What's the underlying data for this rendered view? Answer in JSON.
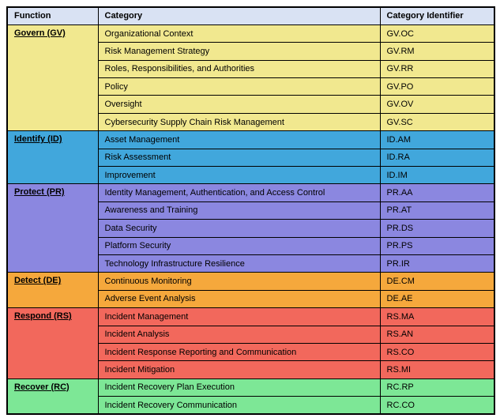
{
  "table": {
    "title_semantic": "NIST CSF 2.0 Functions and Categories",
    "columns": [
      "Function",
      "Category",
      "Category Identifier"
    ],
    "header_bg": "#D9E2F3",
    "border_color": "#000000",
    "text_color": "#000000",
    "sections": [
      {
        "function": "Govern (GV)",
        "color": "#F1E88F",
        "rows": [
          {
            "category": "Organizational Context",
            "id": "GV.OC"
          },
          {
            "category": "Risk Management Strategy",
            "id": "GV.RM"
          },
          {
            "category": "Roles, Responsibilities, and Authorities",
            "id": "GV.RR"
          },
          {
            "category": "Policy",
            "id": "GV.PO"
          },
          {
            "category": "Oversight",
            "id": "GV.OV"
          },
          {
            "category": "Cybersecurity Supply Chain Risk Management",
            "id": "GV.SC"
          }
        ]
      },
      {
        "function": "Identify (ID)",
        "color": "#41A7DC",
        "rows": [
          {
            "category": "Asset Management",
            "id": "ID.AM"
          },
          {
            "category": "Risk Assessment",
            "id": "ID.RA"
          },
          {
            "category": "Improvement",
            "id": "ID.IM"
          }
        ]
      },
      {
        "function": "Protect (PR)",
        "color": "#8B87E0",
        "rows": [
          {
            "category": "Identity Management, Authentication, and Access Control",
            "id": "PR.AA"
          },
          {
            "category": "Awareness and Training",
            "id": "PR.AT"
          },
          {
            "category": "Data Security",
            "id": "PR.DS"
          },
          {
            "category": "Platform Security",
            "id": "PR.PS"
          },
          {
            "category": "Technology Infrastructure Resilience",
            "id": "PR.IR"
          }
        ]
      },
      {
        "function": "Detect (DE)",
        "color": "#F5A83C",
        "rows": [
          {
            "category": "Continuous Monitoring",
            "id": "DE.CM"
          },
          {
            "category": "Adverse Event Analysis",
            "id": "DE.AE"
          }
        ]
      },
      {
        "function": "Respond (RS)",
        "color": "#F2685C",
        "rows": [
          {
            "category": "Incident Management",
            "id": "RS.MA"
          },
          {
            "category": "Incident Analysis",
            "id": "RS.AN"
          },
          {
            "category": "Incident Response Reporting and Communication",
            "id": "RS.CO"
          },
          {
            "category": "Incident Mitigation",
            "id": "RS.MI"
          }
        ]
      },
      {
        "function": "Recover (RC)",
        "color": "#7DE796",
        "rows": [
          {
            "category": "Incident Recovery Plan Execution",
            "id": "RC.RP"
          },
          {
            "category": "Incident Recovery Communication",
            "id": "RC.CO"
          }
        ]
      }
    ]
  }
}
